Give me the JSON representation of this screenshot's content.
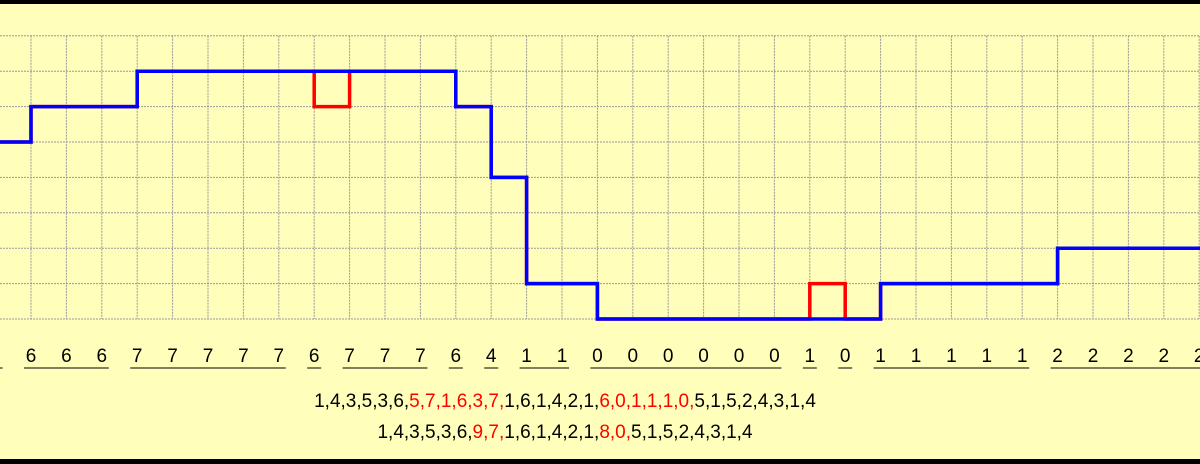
{
  "colors": {
    "background": "#ffffbb",
    "original": "#ff0000",
    "quantized": "#0000ff",
    "grid": "#999999",
    "highlight": "#ff0000"
  },
  "samples": {
    "red_levels": [
      5,
      6,
      6,
      6,
      7,
      7,
      7,
      7,
      7,
      6,
      7,
      7,
      7,
      6,
      4,
      1,
      1,
      0,
      0,
      0,
      0,
      0,
      0,
      1,
      0,
      1,
      1,
      1,
      1,
      1,
      2,
      2,
      2,
      2,
      2
    ],
    "blue_levels": [
      5,
      6,
      6,
      6,
      7,
      7,
      7,
      7,
      7,
      7,
      7,
      7,
      7,
      6,
      4,
      1,
      1,
      0,
      0,
      0,
      0,
      0,
      0,
      0,
      0,
      1,
      1,
      1,
      1,
      1,
      2,
      2,
      2,
      2,
      2
    ],
    "labels": [
      "",
      "6",
      "6",
      "6",
      "7",
      "7",
      "7",
      "7",
      "7",
      "6",
      "7",
      "7",
      "7",
      "6",
      "4",
      "1",
      "1",
      "0",
      "0",
      "0",
      "0",
      "0",
      "0",
      "1",
      "0",
      "1",
      "1",
      "1",
      "1",
      "1",
      "2",
      "2",
      "2",
      "2",
      "2"
    ],
    "level_max": 8
  },
  "sequences": [
    [
      {
        "text": "1,4,3,5,3,6,",
        "highlight": false
      },
      {
        "text": "5,7,1,6,3,7,",
        "highlight": true
      },
      {
        "text": "1,6,1,4,2,1,",
        "highlight": false
      },
      {
        "text": "6,0,1,1,1,0,",
        "highlight": true
      },
      {
        "text": "5,1,5,2,4,3,1,4",
        "highlight": false
      }
    ],
    [
      {
        "text": "1,4,3,5,3,6,",
        "highlight": false
      },
      {
        "text": "9,7,",
        "highlight": true
      },
      {
        "text": "1,6,1,4,2,1,",
        "highlight": false
      },
      {
        "text": "8,0,",
        "highlight": true
      },
      {
        "text": "5,1,5,2,4,3,1,4",
        "highlight": false
      }
    ]
  ]
}
